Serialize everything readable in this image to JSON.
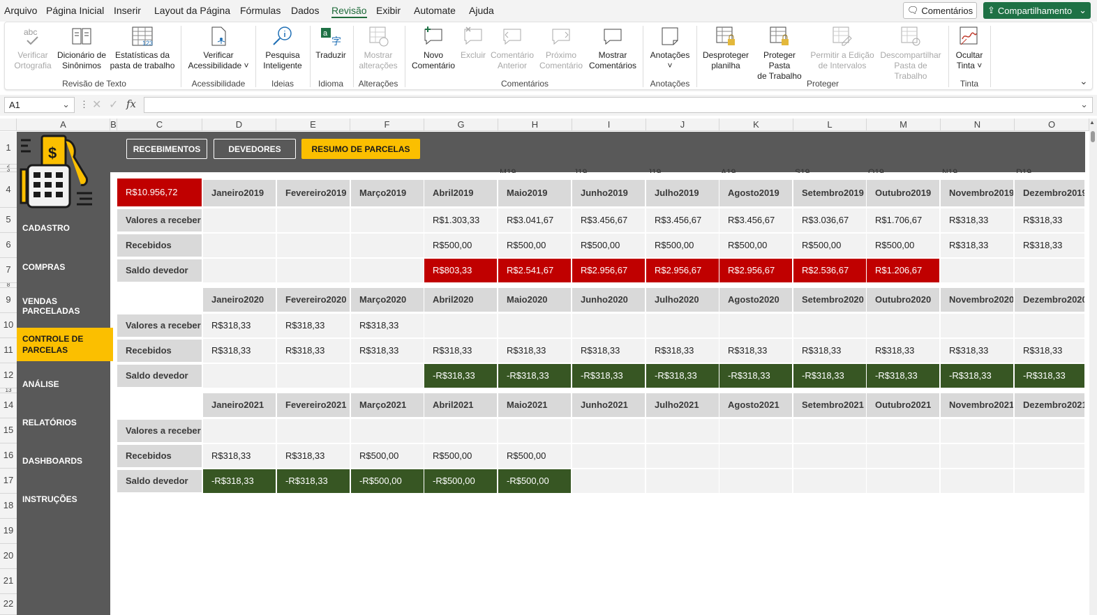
{
  "menu": {
    "items": [
      "Arquivo",
      "Página Inicial",
      "Inserir",
      "Layout da Página",
      "Fórmulas",
      "Dados",
      "Revisão",
      "Exibir",
      "Automate",
      "Ajuda"
    ],
    "active": "Revisão",
    "comments_btn": "Comentários",
    "share_btn": "Compartilhamento"
  },
  "ribbon": {
    "buttons": [
      {
        "l1": "Verificar",
        "l2": "Ortografia",
        "disabled": true
      },
      {
        "l1": "Dicionário de",
        "l2": "Sinônimos"
      },
      {
        "l1": "Estatísticas da",
        "l2": "pasta de trabalho"
      },
      {
        "l1": "Verificar",
        "l2": "Acessibilidade ˅"
      },
      {
        "l1": "Pesquisa",
        "l2": "Inteligente"
      },
      {
        "l1": "Traduzir",
        "l2": ""
      },
      {
        "l1": "Mostrar",
        "l2": "alterações",
        "disabled": true
      },
      {
        "l1": "Novo",
        "l2": "Comentário"
      },
      {
        "l1": "Excluir",
        "l2": "",
        "disabled": true
      },
      {
        "l1": "Comentário",
        "l2": "Anterior",
        "disabled": true
      },
      {
        "l1": "Próximo",
        "l2": "Comentário",
        "disabled": true
      },
      {
        "l1": "Mostrar",
        "l2": "Comentários"
      },
      {
        "l1": "Anotações",
        "l2": "˅"
      },
      {
        "l1": "Desproteger",
        "l2": "planilha"
      },
      {
        "l1": "Proteger Pasta",
        "l2": "de Trabalho"
      },
      {
        "l1": "Permitir a Edição",
        "l2": "de Intervalos",
        "disabled": true
      },
      {
        "l1": "Descompartilhar",
        "l2": "Pasta de Trabalho",
        "disabled": true
      },
      {
        "l1": "Ocultar",
        "l2": "Tinta ˅"
      }
    ],
    "groups": [
      "Revisão de Texto",
      "Acessibilidade",
      "Ideias",
      "Idioma",
      "Alterações",
      "Comentários",
      "Anotações",
      "Proteger",
      "Tinta"
    ]
  },
  "formula_bar": {
    "name_box": "A1",
    "fx": "fx",
    "value": ""
  },
  "columns": [
    "A",
    "B",
    "C",
    "D",
    "E",
    "F",
    "G",
    "H",
    "I",
    "J",
    "K",
    "L",
    "M",
    "N",
    "O"
  ],
  "rows": [
    "1",
    "2",
    "3",
    "4",
    "5",
    "6",
    "7",
    "8",
    "9",
    "10",
    "11",
    "12",
    "13",
    "14",
    "15",
    "16",
    "17",
    "18",
    "19",
    "20",
    "21",
    "22"
  ],
  "nav_tabs": [
    "RECEBIMENTOS",
    "DEVEDORES",
    "RESUMO DE PARCELAS"
  ],
  "sidebar": [
    "CADASTRO",
    "COMPRAS",
    "VENDAS PARCELADAS",
    "CONTROLE DE PARCELAS",
    "ANÁLISE",
    "RELATÓRIOS",
    "DASHBOARDS",
    "INSTRUÇÕES"
  ],
  "cutoff_headers": [
    "M19",
    "J19",
    "J19",
    "A19",
    "S19",
    "O19",
    "N19",
    "D19"
  ],
  "total": "R$10.956,72",
  "row_labels": [
    "Valores a receber",
    "Recebidos",
    "Saldo devedor"
  ],
  "blocks": [
    {
      "months": [
        "Janeiro2019",
        "Fevereiro2019",
        "Março2019",
        "Abril2019",
        "Maio2019",
        "Junho2019",
        "Julho2019",
        "Agosto2019",
        "Setembro2019",
        "Outubro2019",
        "Novembro2019",
        "Dezembro2019"
      ],
      "receber": [
        "",
        "",
        "",
        "R$1.303,33",
        "R$3.041,67",
        "R$3.456,67",
        "R$3.456,67",
        "R$3.456,67",
        "R$3.036,67",
        "R$1.706,67",
        "R$318,33",
        "R$318,33"
      ],
      "recebidos": [
        "",
        "",
        "",
        "R$500,00",
        "R$500,00",
        "R$500,00",
        "R$500,00",
        "R$500,00",
        "R$500,00",
        "R$500,00",
        "R$318,33",
        "R$318,33"
      ],
      "saldo": [
        "",
        "",
        "",
        "R$803,33",
        "R$2.541,67",
        "R$2.956,67",
        "R$2.956,67",
        "R$2.956,67",
        "R$2.536,67",
        "R$1.206,67",
        "",
        ""
      ],
      "saldo_style": [
        "plain",
        "plain",
        "plain",
        "red",
        "red",
        "red",
        "red",
        "red",
        "red",
        "red",
        "plain",
        "plain"
      ]
    },
    {
      "months": [
        "Janeiro2020",
        "Fevereiro2020",
        "Março2020",
        "Abril2020",
        "Maio2020",
        "Junho2020",
        "Julho2020",
        "Agosto2020",
        "Setembro2020",
        "Outubro2020",
        "Novembro2020",
        "Dezembro2020"
      ],
      "receber": [
        "R$318,33",
        "R$318,33",
        "R$318,33",
        "",
        "",
        "",
        "",
        "",
        "",
        "",
        "",
        ""
      ],
      "recebidos": [
        "R$318,33",
        "R$318,33",
        "R$318,33",
        "R$318,33",
        "R$318,33",
        "R$318,33",
        "R$318,33",
        "R$318,33",
        "R$318,33",
        "R$318,33",
        "R$318,33",
        "R$318,33"
      ],
      "saldo": [
        "",
        "",
        "",
        "-R$318,33",
        "-R$318,33",
        "-R$318,33",
        "-R$318,33",
        "-R$318,33",
        "-R$318,33",
        "-R$318,33",
        "-R$318,33",
        "-R$318,33"
      ],
      "saldo_style": [
        "plain",
        "plain",
        "plain",
        "green",
        "green",
        "green",
        "green",
        "green",
        "green",
        "green",
        "green",
        "green"
      ]
    },
    {
      "months": [
        "Janeiro2021",
        "Fevereiro2021",
        "Março2021",
        "Abril2021",
        "Maio2021",
        "Junho2021",
        "Julho2021",
        "Agosto2021",
        "Setembro2021",
        "Outubro2021",
        "Novembro2021",
        "Dezembro2021"
      ],
      "receber": [
        "",
        "",
        "",
        "",
        "",
        "",
        "",
        "",
        "",
        "",
        "",
        ""
      ],
      "recebidos": [
        "R$318,33",
        "R$318,33",
        "R$500,00",
        "R$500,00",
        "R$500,00",
        "",
        "",
        "",
        "",
        "",
        "",
        ""
      ],
      "saldo": [
        "-R$318,33",
        "-R$318,33",
        "-R$500,00",
        "-R$500,00",
        "-R$500,00",
        "",
        "",
        "",
        "",
        "",
        "",
        ""
      ],
      "saldo_style": [
        "green",
        "green",
        "green",
        "green",
        "green",
        "plain",
        "plain",
        "plain",
        "plain",
        "plain",
        "plain",
        "plain"
      ]
    }
  ],
  "colors": {
    "accent": "#1e7145",
    "sidebar": "#595959",
    "highlight": "#fbbf00",
    "red": "#c00000",
    "green": "#375623"
  }
}
